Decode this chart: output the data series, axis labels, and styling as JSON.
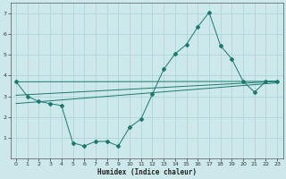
{
  "xlabel": "Humidex (Indice chaleur)",
  "background_color": "#cce8ea",
  "grid_color": "#b0d4d8",
  "line_color": "#1a7a6e",
  "x_ticks": [
    0,
    1,
    2,
    3,
    4,
    5,
    6,
    7,
    8,
    9,
    10,
    11,
    12,
    13,
    14,
    15,
    16,
    17,
    18,
    19,
    20,
    21,
    22,
    23
  ],
  "ylim": [
    0,
    7.5
  ],
  "xlim": [
    -0.5,
    23.5
  ],
  "yticks": [
    1,
    2,
    3,
    4,
    5,
    6,
    7
  ],
  "series": [
    {
      "x": [
        0,
        1,
        2,
        3,
        4,
        5,
        6,
        7,
        8,
        9,
        10,
        11,
        12,
        13,
        14,
        15,
        16,
        17,
        18,
        19,
        20,
        21,
        22,
        23
      ],
      "y": [
        3.7,
        3.0,
        2.75,
        2.65,
        2.55,
        0.75,
        0.6,
        0.82,
        0.82,
        0.6,
        1.5,
        1.9,
        3.1,
        4.3,
        5.05,
        5.5,
        6.35,
        7.05,
        5.45,
        4.8,
        3.72,
        3.2,
        3.72,
        3.72
      ],
      "has_markers": true
    },
    {
      "x": [
        0,
        23
      ],
      "y": [
        3.7,
        3.72
      ],
      "has_markers": false
    },
    {
      "x": [
        0,
        23
      ],
      "y": [
        3.05,
        3.72
      ],
      "has_markers": false
    },
    {
      "x": [
        0,
        23
      ],
      "y": [
        2.65,
        3.65
      ],
      "has_markers": false
    }
  ]
}
